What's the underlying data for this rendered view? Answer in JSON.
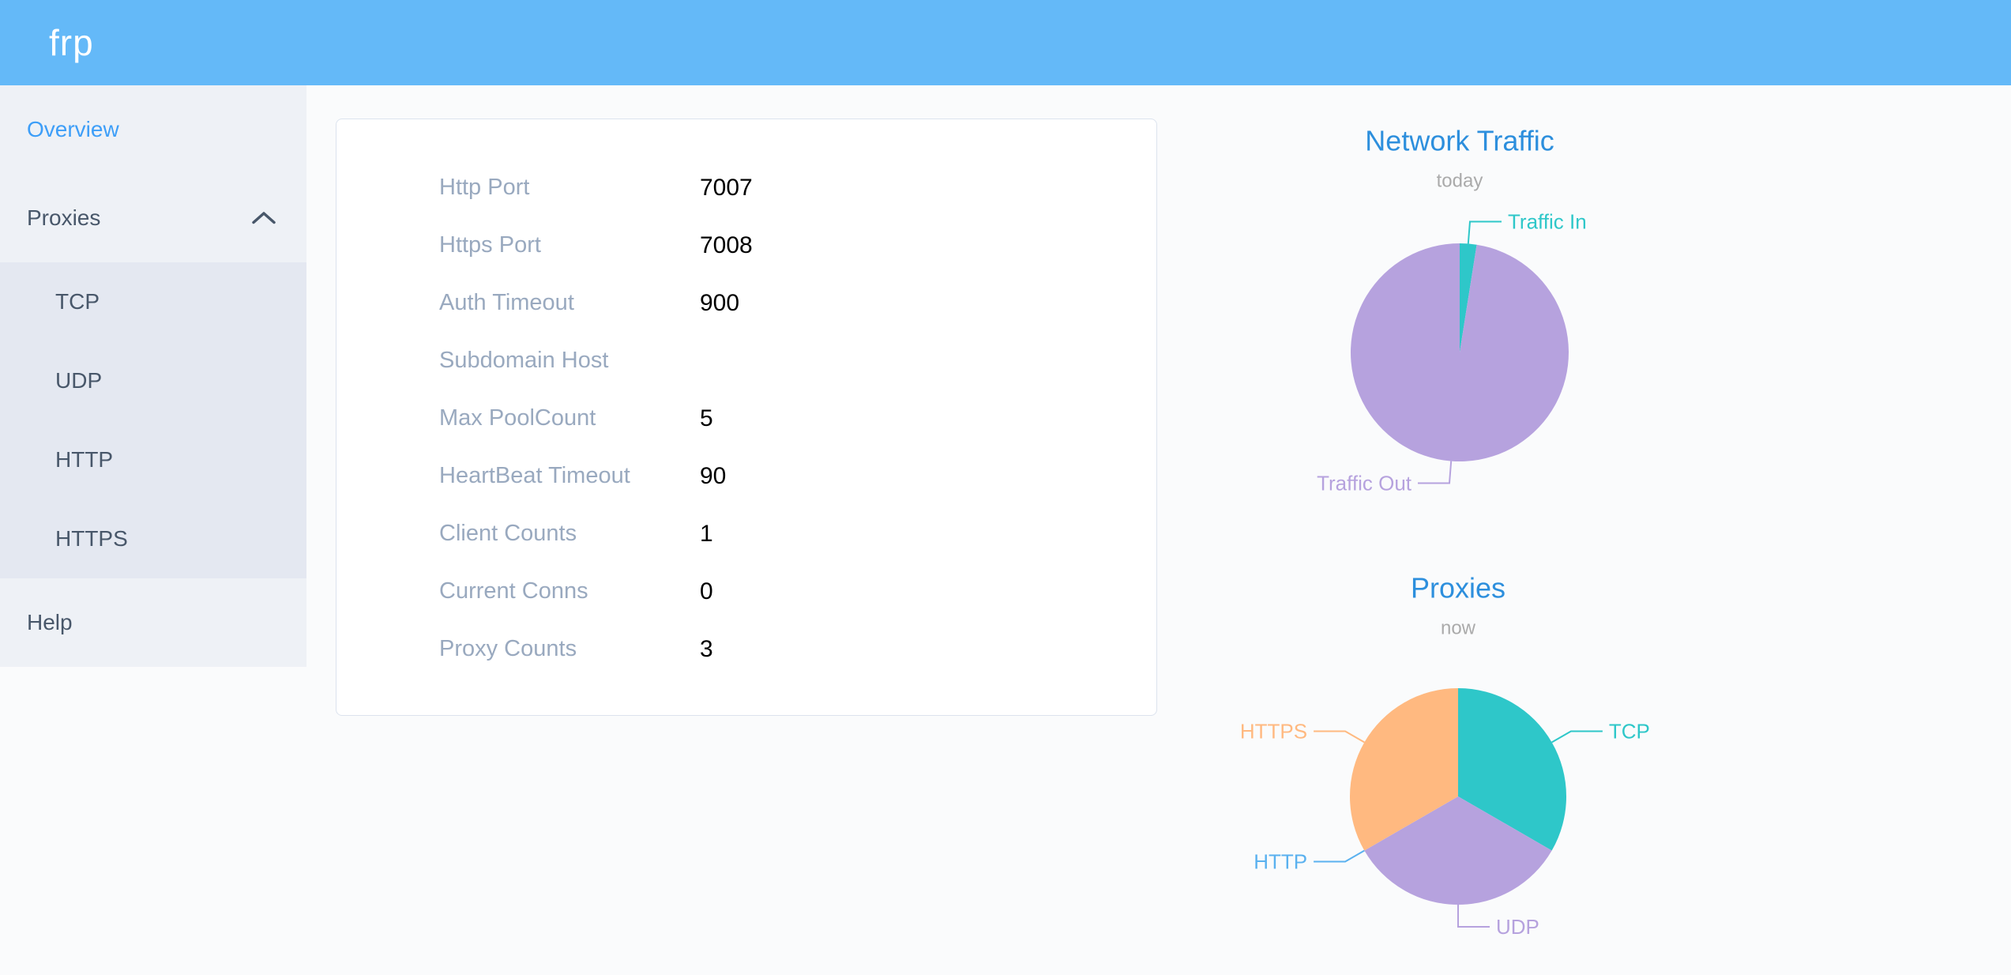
{
  "header": {
    "logo": "frp"
  },
  "sidebar": {
    "overview": "Overview",
    "proxies": "Proxies",
    "submenu": [
      "TCP",
      "UDP",
      "HTTP",
      "HTTPS"
    ],
    "help": "Help"
  },
  "card": {
    "rows": [
      {
        "label": "Http Port",
        "value": "7007"
      },
      {
        "label": "Https Port",
        "value": "7008"
      },
      {
        "label": "Auth Timeout",
        "value": "900"
      },
      {
        "label": "Subdomain Host",
        "value": ""
      },
      {
        "label": "Max PoolCount",
        "value": "5"
      },
      {
        "label": "HeartBeat Timeout",
        "value": "90"
      },
      {
        "label": "Client Counts",
        "value": "1"
      },
      {
        "label": "Current Conns",
        "value": "0"
      },
      {
        "label": "Proxy Counts",
        "value": "3"
      }
    ]
  },
  "chart_data": [
    {
      "type": "pie",
      "title": "Network Traffic",
      "subtitle": "today",
      "title_color": "#2d8fdd",
      "subtitle_color": "#aaaaaa",
      "start_angle": 90,
      "direction": "clockwise",
      "labels": "outside-leader-lines",
      "legend": "none",
      "values_are": "estimated_percent",
      "slices": [
        {
          "label": "Traffic In",
          "value": 2.5,
          "color": "#2ec7c9"
        },
        {
          "label": "Traffic Out",
          "value": 97.5,
          "color": "#b6a2de"
        }
      ]
    },
    {
      "type": "pie",
      "title": "Proxies",
      "subtitle": "now",
      "title_color": "#2d8fdd",
      "subtitle_color": "#aaaaaa",
      "start_angle": 90,
      "direction": "clockwise",
      "labels": "outside-leader-lines",
      "legend": "none",
      "values_are": "proxy_counts",
      "slices": [
        {
          "label": "TCP",
          "value": 1,
          "color": "#2ec7c9"
        },
        {
          "label": "UDP",
          "value": 1,
          "color": "#b6a2de"
        },
        {
          "label": "HTTP",
          "value": 0,
          "color": "#5ab1ef"
        },
        {
          "label": "HTTPS",
          "value": 1,
          "color": "#ffb980"
        }
      ]
    }
  ],
  "colors": {
    "header_bg": "#64b9f8",
    "sidebar_bg": "#eef1f6",
    "submenu_bg": "#e4e8f1",
    "menu_text": "#48576a",
    "menu_active": "#3d9ef8",
    "card_label": "#99a9bf",
    "card_value": "#000000",
    "chart_title": "#2d8fdd"
  }
}
